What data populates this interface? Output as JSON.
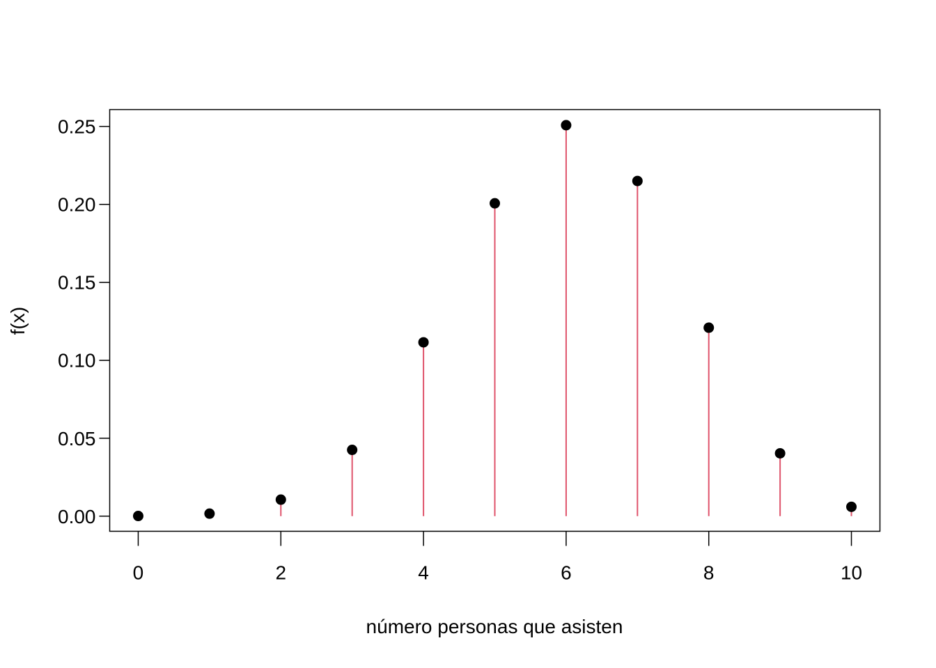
{
  "chart_data": {
    "type": "scatter",
    "x": [
      0,
      1,
      2,
      3,
      4,
      5,
      6,
      7,
      8,
      9,
      10
    ],
    "values": [
      0.0001,
      0.0016,
      0.0106,
      0.0425,
      0.1115,
      0.2007,
      0.2508,
      0.215,
      0.1209,
      0.0403,
      0.006
    ],
    "xlabel": "número personas que asisten",
    "ylabel": "f(x)",
    "xlim": [
      -0.4,
      10.4
    ],
    "ylim": [
      -0.0097,
      0.2608
    ],
    "xticks": [
      "0",
      "2",
      "4",
      "6",
      "8",
      "10"
    ],
    "yticks": [
      "0.00",
      "0.05",
      "0.10",
      "0.15",
      "0.20",
      "0.25"
    ],
    "grid": false,
    "legend": "none",
    "colors": {
      "stem": "#DF536B",
      "point": "#000000",
      "axis": "#000000"
    }
  }
}
